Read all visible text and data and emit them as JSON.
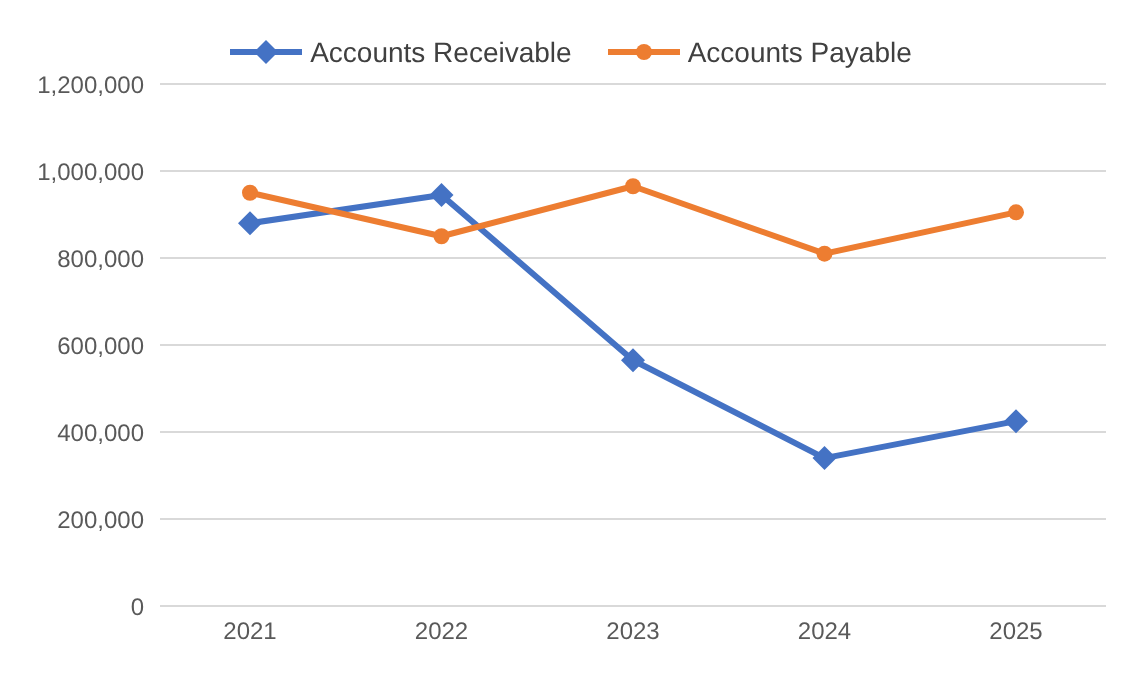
{
  "chart_data": {
    "type": "line",
    "categories": [
      "2021",
      "2022",
      "2023",
      "2024",
      "2025"
    ],
    "series": [
      {
        "name": "Accounts Receivable",
        "color": "#4472c4",
        "marker": "diamond",
        "values": [
          880000,
          945000,
          565000,
          340000,
          425000
        ]
      },
      {
        "name": "Accounts Payable",
        "color": "#ed7d31",
        "marker": "circle",
        "values": [
          950000,
          850000,
          965000,
          810000,
          905000
        ]
      }
    ],
    "ylim": [
      0,
      1200000
    ],
    "yticks": [
      0,
      {
        "value": 200000,
        "label": "200,000"
      },
      {
        "value": 400000,
        "label": "400,000"
      },
      {
        "value": 600000,
        "label": "600,000"
      },
      {
        "value": 800000,
        "label": "800,000"
      },
      {
        "value": 1000000,
        "label": "1,000,000"
      },
      {
        "value": 1200000,
        "label": "1,200,000"
      }
    ],
    "grid": "y",
    "legend": "top"
  }
}
